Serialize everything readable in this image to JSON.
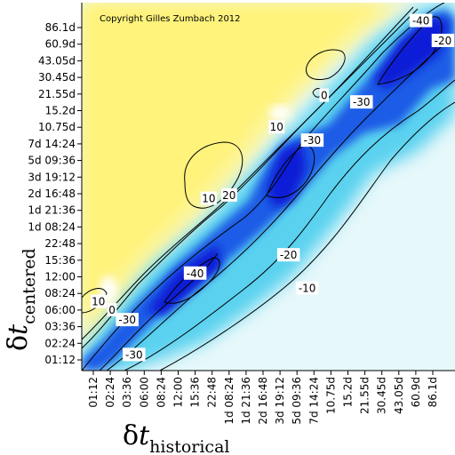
{
  "chart_data": {
    "type": "heatmap",
    "title": "",
    "copyright": "Copyright Gilles Zumbach 2012",
    "xlabel": {
      "symbol": "δ",
      "variable": "t",
      "subscript": "historical"
    },
    "ylabel": {
      "symbol": "δ",
      "variable": "t",
      "subscript": "centered"
    },
    "x_ticks": [
      "01:12",
      "02:24",
      "03:36",
      "06:00",
      "08:24",
      "12:00",
      "15:36",
      "22:48",
      "1d 08:24",
      "1d 21:36",
      "2d 16:48",
      "3d 19:12",
      "5d 09:36",
      "7d 14:24",
      "10.75d",
      "15.2d",
      "21.55d",
      "30.45d",
      "43.05d",
      "60.9d",
      "86.1d"
    ],
    "y_ticks": [
      "01:12",
      "02:24",
      "03:36",
      "06:00",
      "08:24",
      "12:00",
      "15:36",
      "22:48",
      "1d 08:24",
      "1d 21:36",
      "2d 16:48",
      "3d 19:12",
      "5d 09:36",
      "7d 14:24",
      "10.75d",
      "15.2d",
      "21.55d",
      "30.45d",
      "43.05d",
      "60.9d",
      "86.1d"
    ],
    "color_scale": {
      "low": "#0010d8",
      "mid": "#ffffff",
      "high": "#fff07a"
    },
    "contour_levels": [
      -40,
      -30,
      -20,
      -10,
      0,
      10,
      20
    ],
    "contour_labels": [
      {
        "text": "10",
        "x": 0.3,
        "y": 3.5
      },
      {
        "text": "0",
        "x": 1.1,
        "y": 3.0
      },
      {
        "text": "-30",
        "x": 2.0,
        "y": 2.4
      },
      {
        "text": "-30",
        "x": 2.4,
        "y": 0.3
      },
      {
        "text": "-40",
        "x": 6.0,
        "y": 5.2
      },
      {
        "text": "10",
        "x": 6.8,
        "y": 9.7
      },
      {
        "text": "20",
        "x": 8.0,
        "y": 9.9
      },
      {
        "text": "10",
        "x": 10.8,
        "y": 14.0
      },
      {
        "text": "-30",
        "x": 12.9,
        "y": 13.2
      },
      {
        "text": "-20",
        "x": 11.5,
        "y": 6.3
      },
      {
        "text": "-10",
        "x": 12.6,
        "y": 4.3
      },
      {
        "text": "0",
        "x": 13.6,
        "y": 15.9
      },
      {
        "text": "-30",
        "x": 15.8,
        "y": 15.5
      },
      {
        "text": "-40",
        "x": 19.3,
        "y": 20.4
      },
      {
        "text": "-20",
        "x": 20.6,
        "y": 19.2
      }
    ],
    "grid": false,
    "legend": "none"
  }
}
